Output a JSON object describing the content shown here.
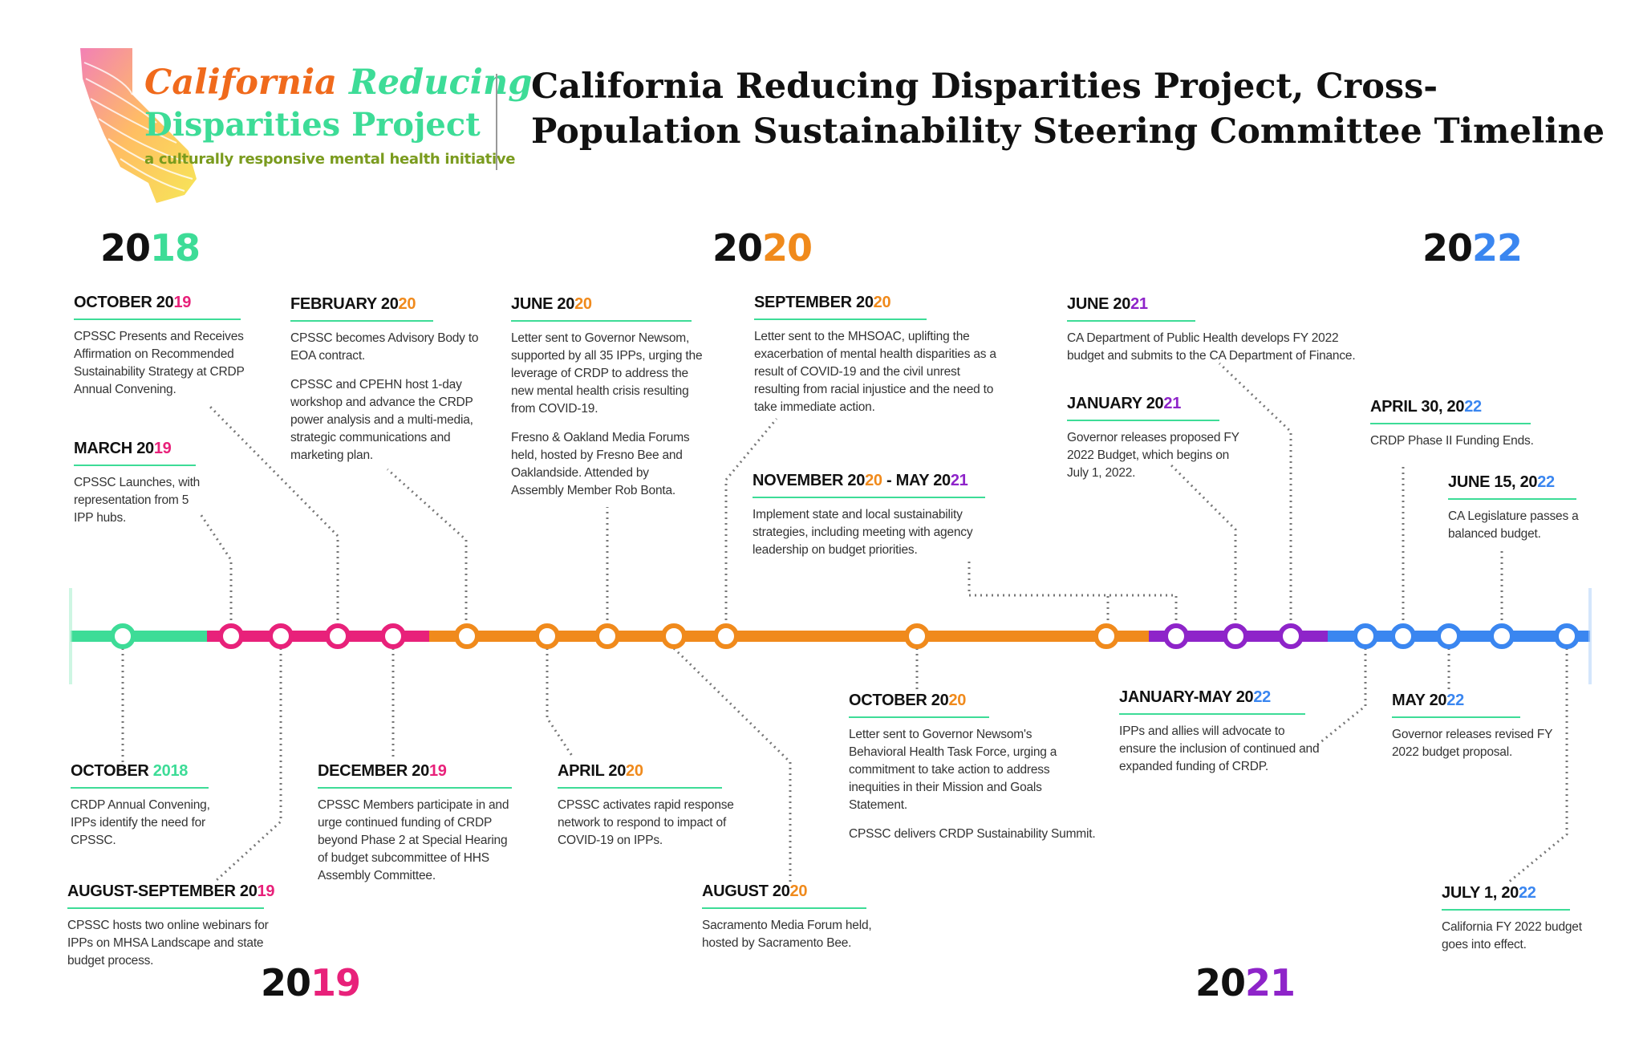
{
  "logo": {
    "line1a": "California",
    "line1b": " Reducing",
    "line2": "Disparities Project",
    "tagline": "a culturally responsive mental health initiative"
  },
  "title": "California Reducing Disparities Project, Cross-Population Sustainability Steering Committee Timeline",
  "colors": {
    "y2018": "#3ddc97",
    "y2019": "#e8217a",
    "y2020": "#f08a1c",
    "y2021": "#8e24c9",
    "y2022": "#3a86f0",
    "rule": "#3ddc97"
  },
  "years": {
    "y2018": {
      "a": "20",
      "b": "18"
    },
    "y2019": {
      "a": "20",
      "b": "19"
    },
    "y2020": {
      "a": "20",
      "b": "20"
    },
    "y2021": {
      "a": "20",
      "b": "21"
    },
    "y2022": {
      "a": "20",
      "b": "22"
    }
  },
  "events": {
    "oct2019": {
      "h1": "OCTOBER 20",
      "h2": "19",
      "body": "CPSSC Presents and Receives Affirmation on Recommended Sustainability Strategy at CRDP Annual Convening."
    },
    "mar2019": {
      "h1": "MARCH 20",
      "h2": "19",
      "body": "CPSSC Launches, with representation from 5 IPP hubs."
    },
    "feb2020": {
      "h1": "FEBRUARY 20",
      "h2": "20",
      "body": "CPSSC becomes Advisory Body to EOA contract.",
      "body2": "CPSSC and CPEHN host 1-day workshop and advance the CRDP power analysis and a multi-media, strategic communications and marketing plan."
    },
    "jun2020": {
      "h1": "JUNE 20",
      "h2": "20",
      "body": "Letter sent to Governor Newsom, supported by all 35 IPPs, urging the leverage of CRDP to address the new mental health crisis resulting from COVID-19.",
      "body2": "Fresno & Oakland Media Forums held, hosted by Fresno Bee and Oaklandside. Attended by Assembly Member Rob Bonta."
    },
    "sep2020": {
      "h1": "SEPTEMBER 20",
      "h2": "20",
      "body": "Letter sent to the MHSOAC, uplifting the exacerbation of mental health disparities as a result of COVID-19 and the civil unrest resulting from racial injustice and the need to take immediate action."
    },
    "nov2020": {
      "h1": "NOVEMBER 20",
      "h2": "20",
      "h3": " - MAY 20",
      "h4": "21",
      "body": "Implement state and local sustainability strategies, including meeting with agency leadership on budget priorities."
    },
    "jun2021": {
      "h1": "JUNE 20",
      "h2": "21",
      "body": "CA Department of Public Health develops FY 2022 budget and submits to the CA Department of Finance."
    },
    "jan2021": {
      "h1": "JANUARY 20",
      "h2": "21",
      "body": "Governor releases proposed FY 2022 Budget, which begins on July 1, 2022."
    },
    "apr2022": {
      "h1": "APRIL 30, 20",
      "h2": "22",
      "body": "CRDP Phase II Funding Ends."
    },
    "jun2022": {
      "h1": "JUNE 15, 20",
      "h2": "22",
      "body": "CA Legislature passes a balanced budget."
    },
    "oct2018": {
      "h1": "OCTOBER ",
      "h2": "2018",
      "body": "CRDP Annual Convening, IPPs identify the need for CPSSC."
    },
    "augsep2019": {
      "h1": "AUGUST-SEPTEMBER 20",
      "h2": "19",
      "body": "CPSSC hosts two online webinars for IPPs on MHSA Landscape and state budget process."
    },
    "dec2019": {
      "h1": "DECEMBER 20",
      "h2": "19",
      "body": "CPSSC Members participate in and urge continued funding of CRDP beyond Phase 2 at Special Hearing of budget subcommittee of HHS Assembly Committee."
    },
    "apr2020": {
      "h1": "APRIL 20",
      "h2": "20",
      "body": "CPSSC activates rapid response network to respond to impact of COVID-19 on IPPs."
    },
    "aug2020": {
      "h1": "AUGUST 20",
      "h2": "20",
      "body": "Sacramento Media Forum held, hosted by Sacramento Bee."
    },
    "oct2020": {
      "h1": "OCTOBER 20",
      "h2": "20",
      "body": "Letter sent to Governor Newsom's Behavioral Health Task Force, urging a commitment to take action to address inequities in their Mission and Goals Statement.",
      "body2": "CPSSC delivers CRDP Sustainability Summit."
    },
    "janmay2022": {
      "h1": "JANUARY-MAY 20",
      "h2": "22",
      "body": "IPPs and allies will advocate to ensure the inclusion of continued and expanded funding of CRDP."
    },
    "may2022": {
      "h1": "MAY 20",
      "h2": "22",
      "body": "Governor releases revised FY 2022 budget proposal."
    },
    "jul2022": {
      "h1": "JULY 1, 20",
      "h2": "22",
      "body": "California FY 2022 budget goes into effect."
    }
  }
}
